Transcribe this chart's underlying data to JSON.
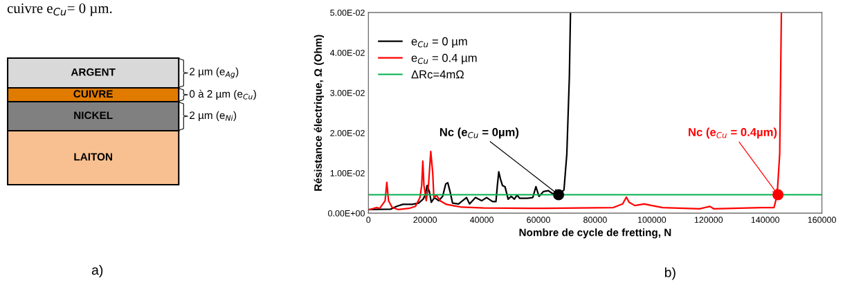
{
  "chart_data": [
    {
      "type": "other",
      "annotations": [
        "cuivre e$_{Cu}$= 0 µm.",
        "ARGENT",
        "CUIVRE",
        "NICKEL",
        "LAITON",
        "2 µm (e$_{Ag}$)",
        "0 à 2 µm (e$_{Cu}$)",
        "2 µm (e$_{Ni}$)",
        "a)"
      ]
    },
    {
      "type": "line",
      "xlabel": "Nombre de cycle de fretting, N",
      "ylabel": "Résistance électrique, Ω (Ohm)",
      "xlim": [
        0,
        160000
      ],
      "xticks": [
        0,
        20000,
        40000,
        60000,
        80000,
        100000,
        120000,
        140000,
        160000
      ],
      "ylim": [
        0,
        0.05
      ],
      "yticks": [
        {
          "value": 0,
          "label": "0.00E+00"
        },
        {
          "value": 0.01,
          "label": "1.00E-02"
        },
        {
          "value": 0.02,
          "label": "2.00E-02"
        },
        {
          "value": 0.03,
          "label": "3.00E-02"
        },
        {
          "value": 0.04,
          "label": "4.00E-02"
        },
        {
          "value": 0.05,
          "label": "5.00E-02"
        }
      ],
      "grid": false,
      "legend": "top left",
      "series": [
        {
          "name": "e$_{Cu}$ = 0 µm",
          "color": "#000000",
          "x": [
            0,
            7850,
            10000,
            12200,
            15500,
            17700,
            19300,
            20100,
            20700,
            21500,
            22200,
            23300,
            24800,
            26200,
            27300,
            28000,
            28800,
            29700,
            31800,
            34600,
            35700,
            37800,
            40000,
            41700,
            43800,
            45000,
            45500,
            46000,
            46600,
            47300,
            48200,
            49300,
            50400,
            51500,
            52400,
            53400,
            55800,
            58000,
            59100,
            60200,
            61800,
            63500,
            65100,
            67100,
            69000,
            70000,
            70900,
            71300
          ],
          "values": [
            0.0009,
            0.001,
            0.0017,
            0.0022,
            0.0022,
            0.0025,
            0.0035,
            0.0046,
            0.0069,
            0.0054,
            0.0027,
            0.0039,
            0.0031,
            0.0042,
            0.0073,
            0.0076,
            0.0054,
            0.0025,
            0.0023,
            0.0039,
            0.0023,
            0.0039,
            0.0031,
            0.0039,
            0.0029,
            0.0029,
            0.0069,
            0.0103,
            0.0085,
            0.0069,
            0.0066,
            0.0035,
            0.0042,
            0.0035,
            0.0045,
            0.0037,
            0.0037,
            0.0039,
            0.0066,
            0.0042,
            0.0054,
            0.0056,
            0.0048,
            0.0045,
            0.0058,
            0.0147,
            0.034,
            0.05
          ]
        },
        {
          "name": "e$_{Cu}$ = 0.4 µm",
          "color": "#ff0000",
          "x": [
            0,
            2900,
            4000,
            5100,
            5900,
            6500,
            7100,
            8400,
            10600,
            14400,
            16600,
            18200,
            18800,
            19200,
            19600,
            20400,
            21200,
            22000,
            22700,
            23100,
            24000,
            25300,
            27500,
            29700,
            32900,
            40600,
            62400,
            86400,
            89700,
            91000,
            92000,
            94000,
            97300,
            100000,
            103800,
            116900,
            120500,
            121800,
            138700,
            143100,
            144200,
            145100,
            145500,
            145700
          ],
          "values": [
            0.0008,
            0.0014,
            0.0012,
            0.0023,
            0.0031,
            0.0077,
            0.0031,
            0.0014,
            0.0009,
            0.0012,
            0.0017,
            0.0039,
            0.0069,
            0.013,
            0.0069,
            0.0031,
            0.0069,
            0.0154,
            0.01,
            0.0039,
            0.0045,
            0.0031,
            0.0022,
            0.0019,
            0.0015,
            0.0013,
            0.0012,
            0.0014,
            0.0023,
            0.004,
            0.0027,
            0.0019,
            0.0023,
            0.0019,
            0.0014,
            0.0011,
            0.0017,
            0.0011,
            0.0014,
            0.0014,
            0.0045,
            0.0147,
            0.0378,
            0.05
          ]
        },
        {
          "name": "ΔRc=4mΩ",
          "color": "#00b050",
          "x": [
            0,
            160000
          ],
          "values": [
            0.0046,
            0.0046
          ]
        },
        {
          "type": "scatter",
          "color": "#000000",
          "x": [
            67100
          ],
          "values": [
            0.0046
          ]
        },
        {
          "type": "scatter",
          "color": "#ff0000",
          "x": [
            144500
          ],
          "values": [
            0.0046
          ]
        }
      ],
      "annotations": [
        {
          "text": "Nc (e$_{Cu}$ = 0µm)",
          "x": 67100,
          "y": 0.0046
        },
        {
          "text": "Nc (e$_{Cu}$ = 0.4µm)",
          "x": 144500,
          "y": 0.0046
        },
        "b)"
      ]
    }
  ]
}
